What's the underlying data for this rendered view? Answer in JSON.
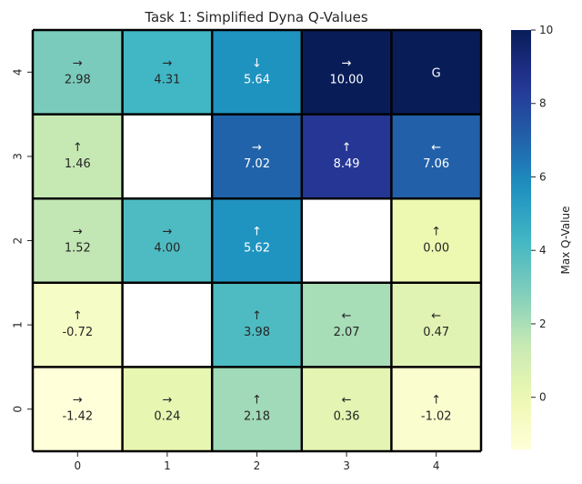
{
  "chart_data": {
    "type": "heatmap",
    "title": "Task 1: Simplified Dyna Q-Values",
    "xlabel": "",
    "ylabel": "",
    "x_ticks": [
      "0",
      "1",
      "2",
      "3",
      "4"
    ],
    "y_ticks": [
      "4",
      "3",
      "2",
      "1",
      "0"
    ],
    "cells": [
      [
        {
          "arrow": "→",
          "value": 2.98,
          "label": "2.98"
        },
        {
          "arrow": "→",
          "value": 4.31,
          "label": "4.31"
        },
        {
          "arrow": "↓",
          "value": 5.64,
          "label": "5.64"
        },
        {
          "arrow": "→",
          "value": 10.0,
          "label": "10.00"
        },
        {
          "arrow": "",
          "value": 10.0,
          "label": "G"
        }
      ],
      [
        {
          "arrow": "↑",
          "value": 1.46,
          "label": "1.46"
        },
        null,
        {
          "arrow": "→",
          "value": 7.02,
          "label": "7.02"
        },
        {
          "arrow": "↑",
          "value": 8.49,
          "label": "8.49"
        },
        {
          "arrow": "←",
          "value": 7.06,
          "label": "7.06"
        }
      ],
      [
        {
          "arrow": "→",
          "value": 1.52,
          "label": "1.52"
        },
        {
          "arrow": "→",
          "value": 4.0,
          "label": "4.00"
        },
        {
          "arrow": "↑",
          "value": 5.62,
          "label": "5.62"
        },
        null,
        {
          "arrow": "↑",
          "value": 0.0,
          "label": "0.00"
        }
      ],
      [
        {
          "arrow": "↑",
          "value": -0.72,
          "label": "-0.72"
        },
        null,
        {
          "arrow": "↑",
          "value": 3.98,
          "label": "3.98"
        },
        {
          "arrow": "←",
          "value": 2.07,
          "label": "2.07"
        },
        {
          "arrow": "←",
          "value": 0.47,
          "label": "0.47"
        }
      ],
      [
        {
          "arrow": "→",
          "value": -1.42,
          "label": "-1.42"
        },
        {
          "arrow": "→",
          "value": 0.24,
          "label": "0.24"
        },
        {
          "arrow": "↑",
          "value": 2.18,
          "label": "2.18"
        },
        {
          "arrow": "←",
          "value": 0.36,
          "label": "0.36"
        },
        {
          "arrow": "↑",
          "value": -1.02,
          "label": "-1.02"
        }
      ]
    ],
    "colorbar": {
      "label": "Max Q-Value",
      "min": -1.42,
      "max": 10,
      "ticks": [
        0,
        2,
        4,
        6,
        8,
        10
      ],
      "colormap": "YlGnBu"
    }
  }
}
